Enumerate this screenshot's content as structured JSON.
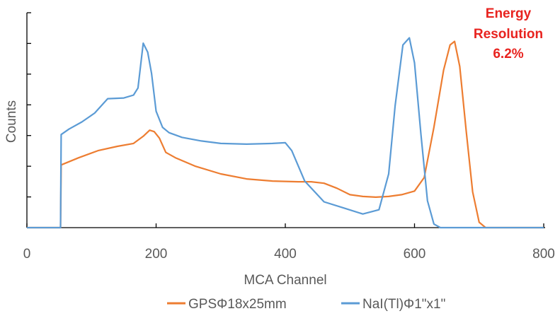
{
  "chart_data": {
    "type": "line",
    "xlabel": "MCA Channel",
    "ylabel": "Counts",
    "xlim": [
      0,
      800
    ],
    "x_ticks": [
      "0",
      "200",
      "400",
      "600",
      "800"
    ],
    "y_tick_count": 7,
    "y_tick_labels_shown": false,
    "grid": false,
    "legend_position": "bottom",
    "annotation": {
      "lines": [
        "Energy",
        "Resolution",
        "6.2%"
      ],
      "color": "#e8231f",
      "position": "top-right"
    },
    "series": [
      {
        "name": "GPSΦ18x25mm",
        "color": "#ed7d31",
        "points": [
          [
            0,
            0
          ],
          [
            50,
            0
          ],
          [
            52,
            0
          ],
          [
            53,
            1.75
          ],
          [
            80,
            1.95
          ],
          [
            110,
            2.15
          ],
          [
            140,
            2.27
          ],
          [
            165,
            2.35
          ],
          [
            180,
            2.55
          ],
          [
            190,
            2.72
          ],
          [
            197,
            2.68
          ],
          [
            205,
            2.5
          ],
          [
            215,
            2.1
          ],
          [
            230,
            1.95
          ],
          [
            260,
            1.72
          ],
          [
            300,
            1.5
          ],
          [
            340,
            1.36
          ],
          [
            380,
            1.3
          ],
          [
            420,
            1.28
          ],
          [
            440,
            1.28
          ],
          [
            460,
            1.24
          ],
          [
            480,
            1.1
          ],
          [
            500,
            0.92
          ],
          [
            520,
            0.87
          ],
          [
            540,
            0.85
          ],
          [
            560,
            0.87
          ],
          [
            580,
            0.92
          ],
          [
            600,
            1.02
          ],
          [
            615,
            1.4
          ],
          [
            630,
            2.8
          ],
          [
            645,
            4.4
          ],
          [
            655,
            5.1
          ],
          [
            662,
            5.2
          ],
          [
            670,
            4.5
          ],
          [
            680,
            2.7
          ],
          [
            690,
            1.0
          ],
          [
            700,
            0.15
          ],
          [
            710,
            0
          ],
          [
            800,
            0
          ]
        ]
      },
      {
        "name": "NaI(Tl)Φ1\"x1\"",
        "color": "#5b9bd5",
        "points": [
          [
            0,
            0
          ],
          [
            50,
            0
          ],
          [
            52,
            0
          ],
          [
            53,
            2.6
          ],
          [
            65,
            2.75
          ],
          [
            85,
            2.95
          ],
          [
            105,
            3.2
          ],
          [
            125,
            3.6
          ],
          [
            150,
            3.62
          ],
          [
            165,
            3.7
          ],
          [
            172,
            3.9
          ],
          [
            180,
            5.15
          ],
          [
            187,
            4.9
          ],
          [
            193,
            4.3
          ],
          [
            200,
            3.25
          ],
          [
            210,
            2.8
          ],
          [
            220,
            2.65
          ],
          [
            240,
            2.52
          ],
          [
            270,
            2.42
          ],
          [
            300,
            2.35
          ],
          [
            340,
            2.33
          ],
          [
            380,
            2.35
          ],
          [
            400,
            2.37
          ],
          [
            410,
            2.15
          ],
          [
            430,
            1.3
          ],
          [
            460,
            0.72
          ],
          [
            490,
            0.55
          ],
          [
            520,
            0.38
          ],
          [
            545,
            0.5
          ],
          [
            560,
            1.5
          ],
          [
            570,
            3.4
          ],
          [
            582,
            5.1
          ],
          [
            592,
            5.3
          ],
          [
            600,
            4.6
          ],
          [
            610,
            2.6
          ],
          [
            620,
            0.75
          ],
          [
            630,
            0.1
          ],
          [
            640,
            0
          ],
          [
            800,
            0
          ]
        ]
      }
    ]
  }
}
